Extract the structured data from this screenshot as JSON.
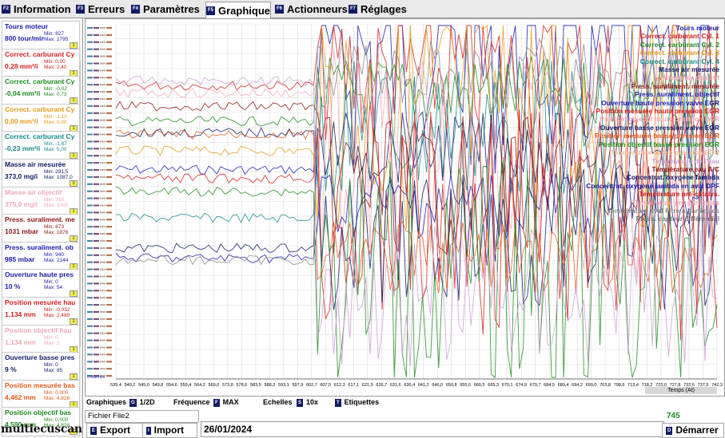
{
  "tabs": [
    {
      "key": "F2",
      "label": "Information"
    },
    {
      "key": "F3",
      "label": "Erreurs"
    },
    {
      "key": "F4",
      "label": "Paramètres"
    },
    {
      "key": "F5",
      "label": "Graphique"
    },
    {
      "key": "F6",
      "label": "Actionneurs"
    },
    {
      "key": "F7",
      "label": "Réglages"
    }
  ],
  "sensors": [
    {
      "name": "Tours moteur",
      "value": "800 tour/min",
      "min": "Min: 827",
      "max": "Max: 2795",
      "color": "#1a1aa8"
    },
    {
      "name": "Correct. carburant Cy",
      "value": "0,28 mm³/i",
      "min": "Min: 0,00",
      "max": "Max: 2,40",
      "color": "#d42020"
    },
    {
      "name": "Correct. carburant Cy",
      "value": "-0,04 mm³/i",
      "min": "Min: -0,02",
      "max": "Max: 0,73",
      "color": "#1e8a1e"
    },
    {
      "name": "Correct. carburant Cy",
      "value": "0,00 mm³/i",
      "min": "Min: -1,10",
      "max": "Max: 0,00",
      "color": "#e39a16"
    },
    {
      "name": "Correct. carburant Cy",
      "value": "-0,23 mm³/i",
      "min": "Min: -1,87",
      "max": "Max: 0,00",
      "color": "#178a8a"
    },
    {
      "name": "Masse air mesurée",
      "value": "373,0 mg/i",
      "min": "Min: 291,5",
      "max": "Max: 1087,0",
      "color": "#111a66"
    },
    {
      "name": "Masse air objectif",
      "value": "375,0 mg/i",
      "min": "Min: 315",
      "max": "Max: 1085",
      "color": "#f0a9b8"
    },
    {
      "name": "Press. suraliment. me",
      "value": "1031 mbar",
      "min": "Min: 873",
      "max": "Max: 1876",
      "color": "#8a1515"
    },
    {
      "name": "Press. suraliment. ob",
      "value": "985 mbar",
      "min": "Min: 940",
      "max": "Max: 2144",
      "color": "#1a1aa8"
    },
    {
      "name": "Ouverture haute pres",
      "value": "10 %",
      "min": "Min: 0",
      "max": "Max: 54",
      "color": "#1a1aa8"
    },
    {
      "name": "Position mesurée hau",
      "value": "1,134 mm",
      "min": "Min: -0,032",
      "max": "Max: 2,489",
      "color": "#d42020"
    },
    {
      "name": "Position objectif hau",
      "value": "1,134 mm",
      "min": "Min: 0",
      "max": "Max: 2",
      "color": "#f0a9b8"
    },
    {
      "name": "Ouverture basse pres",
      "value": "9 %",
      "min": "Min: 0",
      "max": "Max: 85",
      "color": "#111a66"
    },
    {
      "name": "Position mesurée bas",
      "value": "4,462 mm",
      "min": "Min: 0,000",
      "max": "Max: 4,828",
      "color": "#e55a1c"
    },
    {
      "name": "Position objectif bas",
      "value": "4,590 mm",
      "min": "Min: 0,000",
      "max": "Max: 4,828",
      "color": "#1e8a1e"
    }
  ],
  "legend": [
    {
      "label": "Tours moteur",
      "color": "#1a1aa8"
    },
    {
      "label": "Correct. carburant Cyl. 1",
      "color": "#d42020"
    },
    {
      "label": "Correct. carburant Cyl. 2",
      "color": "#1e8a1e"
    },
    {
      "label": "Correct. carburant Cyl. 3",
      "color": "#e39a16"
    },
    {
      "label": "Correct. carburant Cyl. 4",
      "color": "#178a8a"
    },
    {
      "label": "Masse air mesurée",
      "color": "#111a66"
    },
    {
      "label": "Masse air objectif",
      "color": "#f0a9b8"
    },
    {
      "label": "Press. suraliment. mesurée",
      "color": "#8a1515"
    },
    {
      "label": "Press. suraliment. objectif",
      "color": "#1a1aa8"
    },
    {
      "label": "Ouverture haute pression valve EGR",
      "color": "#1a1aa8"
    },
    {
      "label": "Position mesurée haute pression EGR",
      "color": "#d42020"
    },
    {
      "label": "Position objectif haute pression EGR",
      "color": "#f0a9b8"
    },
    {
      "label": "Ouverture basse pression valve EGR",
      "color": "#111a66"
    },
    {
      "label": "Position mesurée basse pression EGR",
      "color": "#e55a1c"
    },
    {
      "label": "Position objectif basse pression EGR",
      "color": "#1e8a1e"
    },
    {
      "label": "Température basse pression EGR",
      "color": "#f0b890"
    },
    {
      "label": "Température de l'eau",
      "color": "#c9a0d0"
    },
    {
      "label": "Température eau A/C",
      "color": "#8a1515"
    },
    {
      "label": "Concentrat. oxygène lambda",
      "color": "#111a66"
    },
    {
      "label": "Concentrat. oxygène lambda en aval DPF",
      "color": "#1a1aa8"
    },
    {
      "label": "Température pré-catalys.",
      "color": "#d42020"
    },
    {
      "label": "Température pré-particules",
      "color": "#f0a9b8"
    },
    {
      "label": "Température aval filtre à particules",
      "color": "#888888"
    },
    {
      "label": "Press. capteur différentiel",
      "color": "#777777"
    }
  ],
  "chart_data": {
    "type": "line",
    "x_unit_label": "Temps (At)",
    "x_ticks": [
      "535,4",
      "540,2",
      "545,0",
      "549,8",
      "554,6",
      "559,4",
      "564,2",
      "569,0",
      "573,8",
      "578,6",
      "583,5",
      "588,3",
      "593,1",
      "597,9",
      "602,7",
      "607,5",
      "612,3",
      "617,1",
      "621,9",
      "626,7",
      "631,6",
      "636,4",
      "641,2",
      "646,0",
      "650,8",
      "655,6",
      "660,5",
      "665,3",
      "670,1",
      "674,9",
      "679,7",
      "684,5",
      "689,4",
      "694,2",
      "699,0",
      "703,8",
      "708,6",
      "713,4",
      "718,2",
      "723,0",
      "727,8",
      "732,6",
      "737,5",
      "742,3"
    ],
    "y_bottom_label": "0 tour/min",
    "series_colors": [
      "#1a1aa8",
      "#d42020",
      "#1e8a1e",
      "#e39a16",
      "#178a8a",
      "#111a66",
      "#f0a9b8",
      "#8a1515",
      "#1a1aa8",
      "#d42020",
      "#111a66",
      "#e55a1c",
      "#1e8a1e",
      "#c9a0d0",
      "#888888"
    ]
  },
  "toolbar": {
    "graphiques": "Graphiques",
    "k1": "G",
    "half": "1/2D",
    "frequence": "Fréquence",
    "k2": "F",
    "freq_value": "MAX",
    "echelles": "Echelles",
    "k3": "S",
    "scale_value": "10x",
    "k4": "T",
    "etiquettes": "Etiquettes"
  },
  "bottom": {
    "file": "Fichier File2",
    "export_key": "E",
    "export": "Export",
    "import_key": "I",
    "import": "Import",
    "date": "26/01/2024",
    "count": "745",
    "start_key": "D",
    "start": "Démarrer",
    "logo": "multiecuscan"
  }
}
